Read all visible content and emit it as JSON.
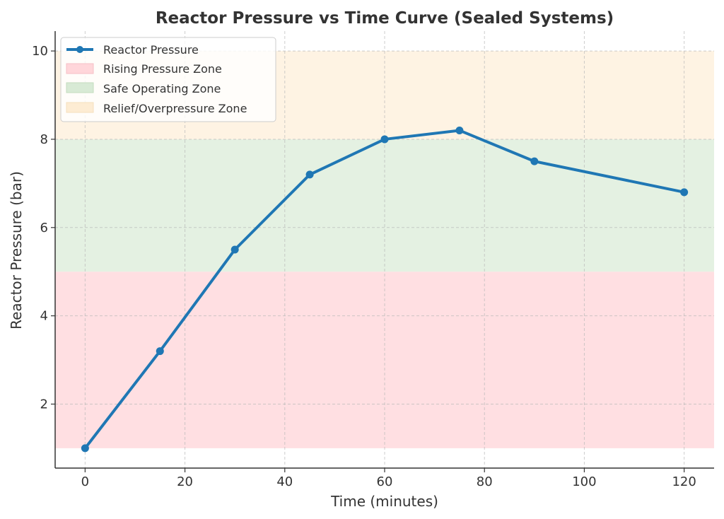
{
  "chart_data": {
    "type": "line",
    "title": "Reactor Pressure vs Time Curve (Sealed Systems)",
    "xlabel": "Time (minutes)",
    "ylabel": "Reactor Pressure (bar)",
    "xlim": [
      -6,
      126
    ],
    "ylim": [
      0.55,
      10.45
    ],
    "xticks": [
      0,
      20,
      40,
      60,
      80,
      100,
      120
    ],
    "yticks": [
      2,
      4,
      6,
      8,
      10
    ],
    "grid": true,
    "legend_position": "top-left",
    "series": [
      {
        "name": "Reactor Pressure",
        "color": "#1f77b4",
        "marker": "circle",
        "x": [
          0,
          15,
          30,
          45,
          60,
          75,
          90,
          120
        ],
        "y": [
          1.0,
          3.2,
          5.5,
          7.2,
          8.0,
          8.2,
          7.5,
          6.8
        ]
      }
    ],
    "zones": [
      {
        "name": "Rising Pressure Zone",
        "y_range": [
          1,
          5
        ],
        "color": "#ffdfe2"
      },
      {
        "name": "Safe Operating Zone",
        "y_range": [
          5,
          8
        ],
        "color": "#e4f1e2"
      },
      {
        "name": "Relief/Overpressure Zone",
        "y_range": [
          8,
          10
        ],
        "color": "#fef3e3"
      }
    ]
  }
}
